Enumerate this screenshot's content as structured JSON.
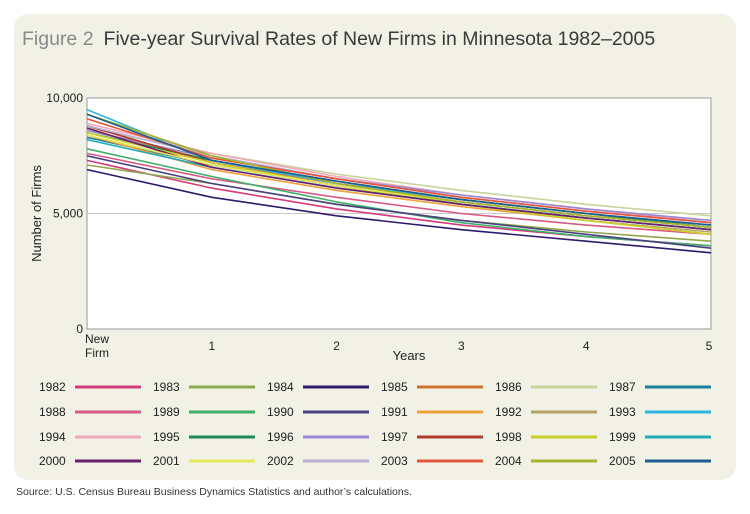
{
  "figure": {
    "label": "Figure 2",
    "title": "Five-year Survival Rates of New Firms in Minnesota 1982–2005"
  },
  "source": "Source: U.S. Census Bureau Business Dynamics Statistics and author’s calculations.",
  "chart_data": {
    "type": "line",
    "x": [
      "New Firm",
      "1",
      "2",
      "3",
      "4",
      "5"
    ],
    "xlabel": "Years",
    "ylabel": "Number of Firms",
    "ylim": [
      0,
      10000
    ],
    "yticks": [
      0,
      5000,
      10000
    ],
    "ytick_labels": [
      "0",
      "5,000",
      "10,000"
    ],
    "grid": "horizontal",
    "legend_position": "bottom",
    "series": [
      {
        "name": "1982",
        "color": "#d63a7a",
        "values": [
          7300,
          6100,
          5200,
          4500,
          4000,
          3600
        ]
      },
      {
        "name": "1983",
        "color": "#8fa74d",
        "values": [
          7100,
          6300,
          5400,
          4700,
          4200,
          3800
        ]
      },
      {
        "name": "1984",
        "color": "#2e1a6b",
        "values": [
          6900,
          5700,
          4900,
          4300,
          3800,
          3300
        ]
      },
      {
        "name": "1985",
        "color": "#d2732d",
        "values": [
          8800,
          7200,
          6300,
          5600,
          5000,
          4400
        ]
      },
      {
        "name": "1986",
        "color": "#c9d49c",
        "values": [
          8700,
          7600,
          6700,
          6000,
          5400,
          4900
        ]
      },
      {
        "name": "1987",
        "color": "#1b7f9d",
        "values": [
          8300,
          7100,
          6200,
          5500,
          4900,
          4400
        ]
      },
      {
        "name": "1988",
        "color": "#d95985",
        "values": [
          7600,
          6500,
          5700,
          5000,
          4500,
          4100
        ]
      },
      {
        "name": "1989",
        "color": "#3fb06a",
        "values": [
          7800,
          6600,
          5500,
          4600,
          4000,
          3600
        ]
      },
      {
        "name": "1990",
        "color": "#4a4080",
        "values": [
          7500,
          6300,
          5400,
          4700,
          4100,
          3500
        ]
      },
      {
        "name": "1991",
        "color": "#f0a03a",
        "values": [
          8400,
          6900,
          6000,
          5300,
          4700,
          4100
        ]
      },
      {
        "name": "1992",
        "color": "#b8a566",
        "values": [
          8600,
          7300,
          6300,
          5400,
          4700,
          4200
        ]
      },
      {
        "name": "1993",
        "color": "#2db7e0",
        "values": [
          9500,
          7300,
          6300,
          5600,
          5000,
          4500
        ]
      },
      {
        "name": "1994",
        "color": "#f2a6b9",
        "values": [
          8900,
          7600,
          6600,
          5800,
          5200,
          4600
        ]
      },
      {
        "name": "1995",
        "color": "#1f8a55",
        "values": [
          8500,
          7300,
          6400,
          5600,
          5000,
          4400
        ]
      },
      {
        "name": "1996",
        "color": "#9c86d1",
        "values": [
          8600,
          7400,
          6500,
          5800,
          5200,
          4700
        ]
      },
      {
        "name": "1997",
        "color": "#b23a2e",
        "values": [
          8800,
          7200,
          6200,
          5400,
          4800,
          4300
        ]
      },
      {
        "name": "1998",
        "color": "#c9d12a",
        "values": [
          8500,
          7200,
          6200,
          5400,
          4700,
          4100
        ]
      },
      {
        "name": "1999",
        "color": "#21aab8",
        "values": [
          8200,
          7000,
          6100,
          5400,
          4800,
          4300
        ]
      },
      {
        "name": "2000",
        "color": "#6a1f6d",
        "values": [
          8700,
          7000,
          6100,
          5400,
          4800,
          4300
        ]
      },
      {
        "name": "2001",
        "color": "#e6e65c",
        "values": [
          8400,
          7100,
          6200,
          5500,
          4900,
          4400
        ]
      },
      {
        "name": "2002",
        "color": "#b9b0d6",
        "values": [
          8800,
          7500,
          6500,
          5700,
          5100,
          4600
        ]
      },
      {
        "name": "2003",
        "color": "#e4573a",
        "values": [
          9100,
          7400,
          6500,
          5700,
          5100,
          4600
        ]
      },
      {
        "name": "2004",
        "color": "#a6b22d",
        "values": [
          9300,
          7500,
          6300,
          5500,
          4900,
          4400
        ]
      },
      {
        "name": "2005",
        "color": "#1f5c8f",
        "values": [
          9300,
          7300,
          6400,
          5600,
          5000,
          4500
        ]
      }
    ]
  }
}
